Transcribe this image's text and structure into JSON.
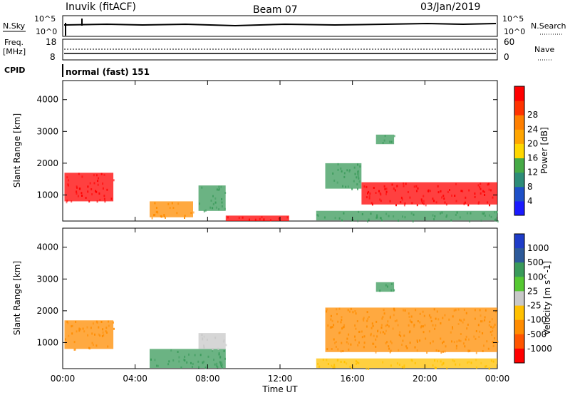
{
  "header": {
    "station": "Inuvik",
    "method": "(fitACF)",
    "beam": "Beam 07",
    "date": "03/Jan/2019"
  },
  "top_panels": {
    "nsky_label": "N.Sky",
    "nsearch_label": "N.Search",
    "n_tick_high": "10^5",
    "n_tick_low": "10^0",
    "freq_label": "Freq.",
    "freq_unit": "[MHz]",
    "freq_ticks": [
      "18",
      "8"
    ],
    "nave_label": "Nave",
    "nave_ticks": [
      "60",
      "0"
    ],
    "cpid_label": "CPID",
    "cpid_value": "normal (fast) 151"
  },
  "colors": {
    "red": "#ff0000",
    "orange": "#ff8c00",
    "yellow": "#ffc000",
    "green": "#3a9a5a",
    "blue": "#1e3cc8",
    "gray": "#c8c8c8"
  },
  "chart_data": [
    {
      "type": "heatmap",
      "panel": "power",
      "xlabel": "",
      "ylabel": "Slant Range [km]",
      "xlim": [
        "00:00",
        "24:00"
      ],
      "ylim": [
        180,
        4600
      ],
      "y_ticks": [
        1000,
        2000,
        3000,
        4000
      ],
      "colorbar": {
        "label": "Power [dB]",
        "ticks": [
          "4",
          "8",
          "12",
          "16",
          "20",
          "24",
          "28"
        ],
        "colors": [
          "#1a1aff",
          "#1e50c8",
          "#2d8c78",
          "#46aa46",
          "#ffd700",
          "#ffa500",
          "#ff7f00",
          "#ff3300",
          "#ff0000"
        ]
      },
      "regions": [
        {
          "t0": 0.1,
          "t1": 2.8,
          "r0": 800,
          "r1": 1700,
          "level": "red"
        },
        {
          "t0": 4.8,
          "t1": 7.2,
          "r0": 300,
          "r1": 800,
          "level": "orange"
        },
        {
          "t0": 7.5,
          "t1": 9.0,
          "r0": 500,
          "r1": 1300,
          "level": "green"
        },
        {
          "t0": 9.0,
          "t1": 12.5,
          "r0": 180,
          "r1": 350,
          "level": "red"
        },
        {
          "t0": 14.5,
          "t1": 16.5,
          "r0": 1200,
          "r1": 2000,
          "level": "green"
        },
        {
          "t0": 16.5,
          "t1": 24.0,
          "r0": 700,
          "r1": 1400,
          "level": "red"
        },
        {
          "t0": 17.3,
          "t1": 18.3,
          "r0": 2600,
          "r1": 2900,
          "level": "green"
        },
        {
          "t0": 14.0,
          "t1": 24.0,
          "r0": 200,
          "r1": 500,
          "level": "green"
        }
      ]
    },
    {
      "type": "heatmap",
      "panel": "velocity",
      "xlabel": "Time UT",
      "ylabel": "Slant Range [km]",
      "xlim": [
        "00:00",
        "24:00"
      ],
      "ylim": [
        180,
        4600
      ],
      "x_ticks": [
        "00:00",
        "04:00",
        "08:00",
        "12:00",
        "16:00",
        "20:00",
        "00:00"
      ],
      "y_ticks": [
        1000,
        2000,
        3000,
        4000
      ],
      "colorbar": {
        "label": "Velocity [m s^-1]",
        "ticks": [
          "1000",
          "500",
          "100",
          "25",
          "-25",
          "-100",
          "-500",
          "-1000"
        ],
        "colors": [
          "#1e3cc8",
          "#2d5a9a",
          "#3a9a5a",
          "#56c832",
          "#c8c8c8",
          "#ffc000",
          "#ff8c00",
          "#ff5500",
          "#ff0000"
        ]
      },
      "regions": [
        {
          "t0": 0.1,
          "t1": 2.8,
          "r0": 800,
          "r1": 1700,
          "level": "orange"
        },
        {
          "t0": 4.8,
          "t1": 9.0,
          "r0": 200,
          "r1": 800,
          "level": "green"
        },
        {
          "t0": 7.5,
          "t1": 9.0,
          "r0": 800,
          "r1": 1300,
          "level": "gray"
        },
        {
          "t0": 14.5,
          "t1": 24.0,
          "r0": 700,
          "r1": 2100,
          "level": "orange"
        },
        {
          "t0": 17.3,
          "t1": 18.3,
          "r0": 2600,
          "r1": 2900,
          "level": "green"
        },
        {
          "t0": 14.0,
          "t1": 24.0,
          "r0": 200,
          "r1": 500,
          "level": "yellow"
        }
      ]
    }
  ]
}
